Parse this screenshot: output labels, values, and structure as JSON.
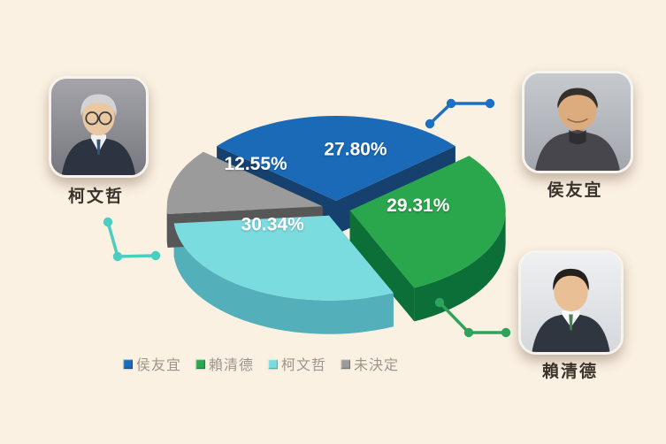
{
  "page": {
    "background": "#fbf1e3"
  },
  "chart_data": {
    "type": "pie",
    "style": "3d-exploded",
    "legend_position": "bottom",
    "label_color": "#ffffff",
    "slices": [
      {
        "name": "侯友宜",
        "value": 27.8,
        "label": "27.80%",
        "color": "#1a6ab8",
        "side_color": "#16416f"
      },
      {
        "name": "賴清德",
        "value": 29.31,
        "label": "29.31%",
        "color": "#2aa64d",
        "side_color": "#0c6f38"
      },
      {
        "name": "柯文哲",
        "value": 30.34,
        "label": "30.34%",
        "color": "#7bdce0",
        "side_color": "#53b0ba"
      },
      {
        "name": "未決定",
        "value": 12.55,
        "label": "12.55%",
        "color": "#9b9b9b",
        "side_color": "#575757"
      }
    ]
  },
  "candidates": [
    {
      "name": "柯文哲",
      "position": "top-left",
      "connector_color": "#49cec1"
    },
    {
      "name": "侯友宜",
      "position": "top-right",
      "connector_color": "#1d70c1"
    },
    {
      "name": "賴清德",
      "position": "bottom-right",
      "connector_color": "#2fa35c"
    }
  ]
}
